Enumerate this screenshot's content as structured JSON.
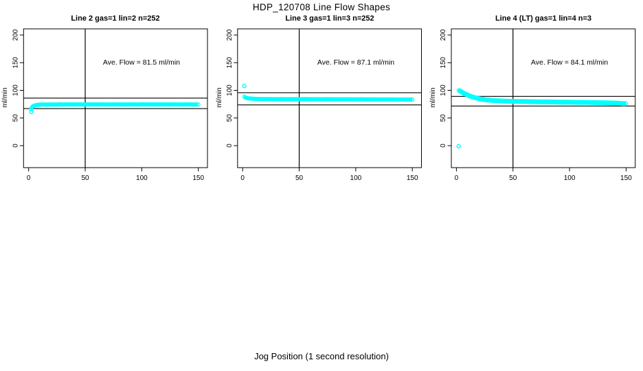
{
  "title": "HDP_120708  Line Flow Shapes",
  "xlabel": "Jog Position (1 second resolution)",
  "chart_data": {
    "type": "scatter",
    "ylabel": "ml/min",
    "x_ticks": [
      0,
      50,
      100,
      150
    ],
    "y_ticks": [
      0,
      50,
      100,
      150,
      200
    ],
    "xlim": [
      -4.5,
      158
    ],
    "ylim": [
      -40,
      211
    ],
    "grid": false,
    "legend": false,
    "point_color": "#00ffff",
    "axis_color": "#000000",
    "background_color": "#ffffff",
    "vline_x": 50,
    "panels": [
      {
        "title": "Line 2 gas=1 lin=2 n=252",
        "ave_label": "Ave. Flow =  81.5  ml/min",
        "ave_flow": 81.5,
        "hlines": [
          86,
          67
        ],
        "outliers": [
          [
            2.4,
            61
          ]
        ],
        "series": [
          [
            2,
            66
          ],
          [
            2.7,
            68.5
          ],
          [
            3.5,
            70.5
          ],
          [
            4.5,
            72
          ],
          [
            6,
            73
          ],
          [
            8,
            73.8
          ],
          [
            10,
            74.2
          ],
          [
            13,
            74.4
          ],
          [
            16,
            74.3
          ],
          [
            20,
            74.5
          ],
          [
            24,
            74.3
          ],
          [
            28,
            74.6
          ],
          [
            32,
            74.4
          ],
          [
            36,
            74.6
          ],
          [
            40,
            74.4
          ],
          [
            44,
            74.6
          ],
          [
            48,
            74.4
          ],
          [
            52,
            74.5
          ],
          [
            56,
            74.6
          ],
          [
            60,
            74.4
          ],
          [
            64,
            74.6
          ],
          [
            68,
            74.5
          ],
          [
            72,
            74.4
          ],
          [
            76,
            74.6
          ],
          [
            80,
            74.5
          ],
          [
            84,
            74.4
          ],
          [
            88,
            74.6
          ],
          [
            92,
            74.5
          ],
          [
            96,
            74.4
          ],
          [
            100,
            74.6
          ],
          [
            104,
            74.5
          ],
          [
            108,
            74.6
          ],
          [
            112,
            74.4
          ],
          [
            116,
            74.6
          ],
          [
            120,
            74.5
          ],
          [
            124,
            74.4
          ],
          [
            128,
            74.6
          ],
          [
            132,
            74.5
          ],
          [
            136,
            74.4
          ],
          [
            140,
            74.6
          ],
          [
            144,
            74.5
          ],
          [
            147,
            74.5
          ],
          [
            150,
            74.5
          ]
        ]
      },
      {
        "title": "Line 3 gas=1 lin=3 n=252",
        "ave_label": "Ave. Flow =  87.1  ml/min",
        "ave_flow": 87.1,
        "hlines": [
          95.7,
          73.7
        ],
        "outliers": [
          [
            1.5,
            108
          ]
        ],
        "series": [
          [
            1.5,
            88.5
          ],
          [
            2.5,
            87
          ],
          [
            4,
            86
          ],
          [
            6,
            85.3
          ],
          [
            9,
            84.8
          ],
          [
            12,
            84.5
          ],
          [
            16,
            84.3
          ],
          [
            20,
            84.2
          ],
          [
            25,
            84.2
          ],
          [
            30,
            84
          ],
          [
            35,
            84.2
          ],
          [
            40,
            84
          ],
          [
            45,
            84.1
          ],
          [
            50,
            84
          ],
          [
            55,
            84.1
          ],
          [
            60,
            84
          ],
          [
            65,
            84
          ],
          [
            70,
            83.9
          ],
          [
            75,
            84
          ],
          [
            80,
            83.8
          ],
          [
            85,
            83.9
          ],
          [
            90,
            83.8
          ],
          [
            95,
            83.8
          ],
          [
            100,
            83.7
          ],
          [
            105,
            83.8
          ],
          [
            110,
            83.6
          ],
          [
            115,
            83.7
          ],
          [
            120,
            83.6
          ],
          [
            125,
            83.5
          ],
          [
            130,
            83.6
          ],
          [
            135,
            83.5
          ],
          [
            140,
            83.4
          ],
          [
            145,
            83.5
          ],
          [
            150,
            83.4
          ]
        ]
      },
      {
        "title": "Line 4 (LT) gas=1 lin=4 n=3",
        "ave_label": "Ave. Flow =  84.1  ml/min",
        "ave_flow": 84.1,
        "hlines": [
          89,
          71.7
        ],
        "outliers": [
          [
            2,
            -1
          ]
        ],
        "series": [
          [
            2,
            100
          ],
          [
            3,
            99
          ],
          [
            4,
            97.8
          ],
          [
            5,
            96.5
          ],
          [
            6,
            95.3
          ],
          [
            7.5,
            93.8
          ],
          [
            9,
            92.3
          ],
          [
            11,
            90.5
          ],
          [
            13,
            89
          ],
          [
            15,
            87.6
          ],
          [
            17,
            86.4
          ],
          [
            19,
            85.4
          ],
          [
            21,
            84.5
          ],
          [
            24,
            83.4
          ],
          [
            27,
            82.6
          ],
          [
            30,
            82
          ],
          [
            34,
            81.4
          ],
          [
            38,
            81
          ],
          [
            42,
            80.6
          ],
          [
            46,
            80.3
          ],
          [
            50,
            80.1
          ],
          [
            55,
            79.9
          ],
          [
            60,
            79.7
          ],
          [
            65,
            79.5
          ],
          [
            70,
            79.4
          ],
          [
            75,
            79.2
          ],
          [
            80,
            79.1
          ],
          [
            85,
            79
          ],
          [
            90,
            78.8
          ],
          [
            95,
            78.7
          ],
          [
            100,
            78.6
          ],
          [
            105,
            78.4
          ],
          [
            110,
            78.3
          ],
          [
            115,
            78.2
          ],
          [
            120,
            78
          ],
          [
            125,
            77.8
          ],
          [
            130,
            77.6
          ],
          [
            135,
            77.3
          ],
          [
            140,
            77
          ],
          [
            144,
            76.6
          ],
          [
            147,
            76.2
          ],
          [
            150,
            76
          ]
        ]
      }
    ]
  }
}
